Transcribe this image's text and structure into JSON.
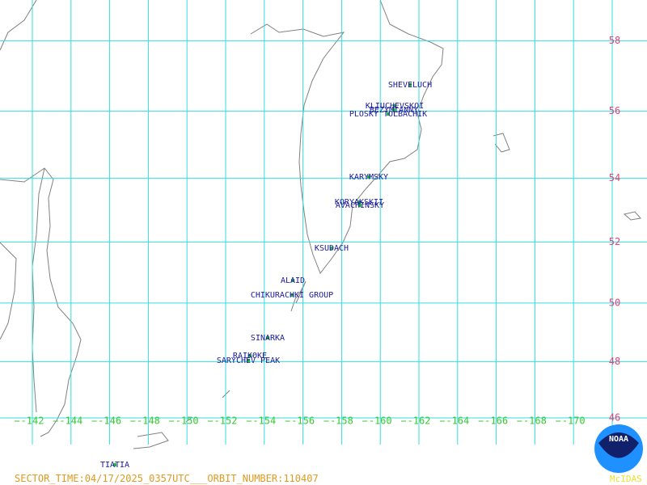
{
  "map": {
    "lon_ticks": [
      -142,
      -144,
      -146,
      -148,
      -150,
      -152,
      -154,
      -156,
      -158,
      -160,
      -162,
      -164,
      -166,
      -168,
      -170
    ],
    "lat_ticks": [
      58,
      56,
      54,
      52,
      50,
      48,
      46
    ],
    "volcanoes": [
      "SHEVELUCH",
      "KLIUCHEVSKOI",
      "BEZYMIANNY",
      "PLOSKY TOLBACHIK",
      "KARYMSKY",
      "KORYAKSKII",
      "AVACHINSKY",
      "KSUDACH",
      "ALAID",
      "CHIKURACHKI GROUP",
      "SINARKA",
      "RAIKOKE",
      "SARYCHEV PEAK",
      "TIATIA"
    ],
    "footer": "SECTOR_TIME:04/17/2025_0357UTC___ORBIT_NUMBER:110407",
    "logo_text": "NOAA",
    "product": "McIDAS"
  }
}
